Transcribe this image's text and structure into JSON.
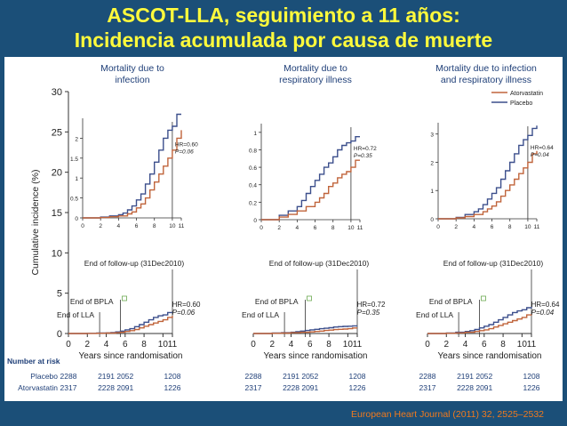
{
  "slide": {
    "title_line1": "ASCOT-LLA, seguimiento a 11 años:",
    "title_line2": "Incidencia acumulada por causa de muerte",
    "citation": "European Heart Journal (2011) 32, 2525–2532"
  },
  "colors": {
    "atorvastatin": "#c0643b",
    "placebo": "#3c4f8c",
    "axis": "#333333",
    "label_blue": "#1f3f78"
  },
  "shared": {
    "ylabel": "Cumulative incidence (%)",
    "xlabel": "Years since randomisation",
    "end_follow_up": "End of follow-up (31Dec2010)",
    "end_bpla": "End of BPLA",
    "end_lla": "End of LLA",
    "number_at_risk": "Number at risk",
    "placebo_label": "Placebo",
    "atorvastatin_label": "Atorvastatin",
    "legend": [
      "Atorvastatin",
      "Placebo"
    ]
  },
  "chart_data": [
    {
      "type": "line",
      "panel_title": [
        "Mortality due to",
        "infection"
      ],
      "hr_text": "HR=0.60",
      "p_text": "P=0.06",
      "x_ticks": [
        "0",
        "2",
        "4",
        "6",
        "8",
        "10",
        "11"
      ],
      "main_y_ticks": [
        "0",
        "5",
        "10",
        "15",
        "20",
        "25",
        "30"
      ],
      "main_ylim": [
        0,
        30
      ],
      "inset_y_ticks": [
        "0",
        "0.5",
        "1",
        "1.5",
        "2"
      ],
      "inset_ylim": [
        0,
        2.5
      ],
      "placebo_at_risk": [
        "2288",
        "2191",
        "2052",
        "1208"
      ],
      "atorvastatin_at_risk": [
        "2317",
        "2228",
        "2091",
        "1226"
      ],
      "series": [
        {
          "name": "Placebo",
          "x": [
            0,
            2,
            3,
            4,
            4.5,
            5,
            5.5,
            6,
            6.5,
            7,
            7.5,
            8,
            8.5,
            9,
            9.5,
            10,
            10.5,
            11
          ],
          "y": [
            0,
            0.02,
            0.05,
            0.08,
            0.12,
            0.2,
            0.3,
            0.45,
            0.6,
            0.85,
            1.1,
            1.4,
            1.7,
            2.0,
            2.2,
            2.3,
            2.6,
            2.6
          ]
        },
        {
          "name": "Atorvastatin",
          "x": [
            0,
            2,
            3,
            4,
            5,
            5.5,
            6,
            6.5,
            7,
            7.5,
            8,
            8.5,
            9,
            9.5,
            10,
            10.5,
            11
          ],
          "y": [
            0,
            0.01,
            0.03,
            0.05,
            0.1,
            0.15,
            0.25,
            0.35,
            0.5,
            0.7,
            0.9,
            1.1,
            1.3,
            1.5,
            1.7,
            2.0,
            2.2
          ]
        }
      ]
    },
    {
      "type": "line",
      "panel_title": [
        "Mortality due to",
        "respiratory illness"
      ],
      "hr_text": "HR=0.72",
      "p_text": "P=0.35",
      "x_ticks": [
        "0",
        "2",
        "4",
        "6",
        "8",
        "10",
        "11"
      ],
      "inset_y_ticks": [
        "0",
        "0.2",
        "0.4",
        "0.6",
        "0.8",
        "1"
      ],
      "inset_ylim": [
        0,
        1.1
      ],
      "placebo_at_risk": [
        "2288",
        "2191",
        "2052",
        "1208"
      ],
      "atorvastatin_at_risk": [
        "2317",
        "2228",
        "2091",
        "1226"
      ],
      "series": [
        {
          "name": "Placebo",
          "x": [
            0,
            2,
            3,
            4,
            4.5,
            5,
            5.5,
            6,
            6.5,
            7,
            7.5,
            8,
            8.5,
            9,
            9.5,
            10,
            10.5,
            11
          ],
          "y": [
            0,
            0.05,
            0.1,
            0.15,
            0.22,
            0.3,
            0.38,
            0.45,
            0.52,
            0.6,
            0.65,
            0.72,
            0.8,
            0.85,
            0.88,
            0.9,
            0.95,
            0.95
          ]
        },
        {
          "name": "Atorvastatin",
          "x": [
            0,
            2,
            3,
            4,
            5,
            6,
            6.5,
            7,
            7.5,
            8,
            8.5,
            9,
            9.5,
            10,
            10.5,
            11
          ],
          "y": [
            0,
            0.03,
            0.06,
            0.1,
            0.15,
            0.2,
            0.25,
            0.3,
            0.38,
            0.42,
            0.48,
            0.52,
            0.55,
            0.6,
            0.68,
            0.68
          ]
        }
      ]
    },
    {
      "type": "line",
      "panel_title": [
        "Mortality due to infection",
        "and respiratory illness"
      ],
      "hr_text": "HR=0.64",
      "p_text": "P=0.04",
      "x_ticks": [
        "0",
        "2",
        "4",
        "6",
        "8",
        "10",
        "11"
      ],
      "inset_y_ticks": [
        "0",
        "1",
        "2",
        "3"
      ],
      "inset_ylim": [
        0,
        3.4
      ],
      "placebo_at_risk": [
        "2288",
        "2191",
        "2052",
        "1208"
      ],
      "atorvastatin_at_risk": [
        "2317",
        "2228",
        "2091",
        "1226"
      ],
      "series": [
        {
          "name": "Placebo",
          "x": [
            0,
            2,
            3,
            4,
            4.5,
            5,
            5.5,
            6,
            6.5,
            7,
            7.5,
            8,
            8.5,
            9,
            9.5,
            10,
            10.5,
            11
          ],
          "y": [
            0,
            0.05,
            0.15,
            0.25,
            0.35,
            0.5,
            0.7,
            0.9,
            1.1,
            1.4,
            1.7,
            2.0,
            2.3,
            2.6,
            2.8,
            2.95,
            3.2,
            3.3
          ]
        },
        {
          "name": "Atorvastatin",
          "x": [
            0,
            2,
            3,
            4,
            5,
            5.5,
            6,
            6.5,
            7,
            7.5,
            8,
            8.5,
            9,
            9.5,
            10,
            10.5,
            11
          ],
          "y": [
            0,
            0.03,
            0.08,
            0.15,
            0.25,
            0.35,
            0.45,
            0.6,
            0.8,
            1.0,
            1.2,
            1.4,
            1.6,
            1.8,
            2.0,
            2.3,
            2.4
          ]
        }
      ]
    }
  ]
}
